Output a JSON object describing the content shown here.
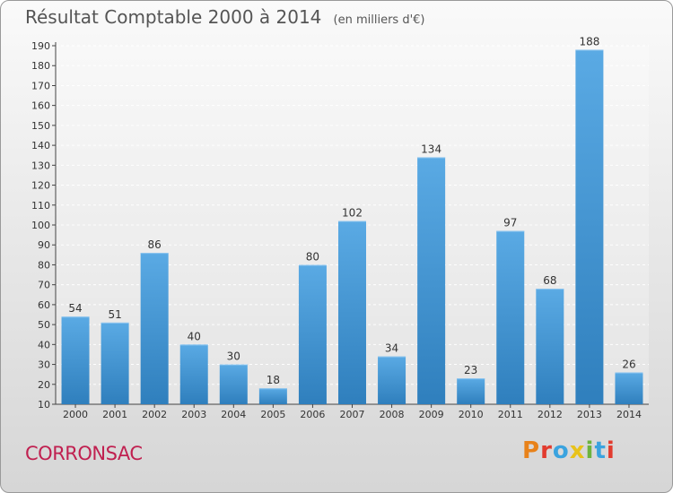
{
  "title": "Résultat Comptable 2000 à 2014",
  "unit_note": "(en milliers d'€)",
  "place_name": "CORRONSAC",
  "brand": "Proxiti",
  "colors": {
    "bar_top": "#5aaae4",
    "bar_bottom": "#2f7fbd",
    "title": "#555555",
    "place": "#c02050",
    "brand_letters": [
      "#e8821a",
      "#e23b2e",
      "#3aa3df",
      "#e8c21a",
      "#6cb33f",
      "#3aa3df",
      "#e23b2e"
    ]
  },
  "chart_data": {
    "type": "bar",
    "title": "Résultat Comptable 2000 à 2014",
    "subtitle": "(en milliers d'€)",
    "xlabel": "",
    "ylabel": "",
    "categories": [
      "2000",
      "2001",
      "2002",
      "2003",
      "2004",
      "2005",
      "2006",
      "2007",
      "2008",
      "2009",
      "2010",
      "2011",
      "2012",
      "2013",
      "2014"
    ],
    "values": [
      54,
      51,
      86,
      40,
      30,
      18,
      80,
      102,
      34,
      134,
      23,
      97,
      68,
      188,
      26
    ],
    "ylim": [
      10,
      190
    ],
    "yticks": [
      10,
      20,
      30,
      40,
      50,
      60,
      70,
      80,
      90,
      100,
      110,
      120,
      130,
      140,
      150,
      160,
      170,
      180,
      190
    ],
    "grid": true
  }
}
